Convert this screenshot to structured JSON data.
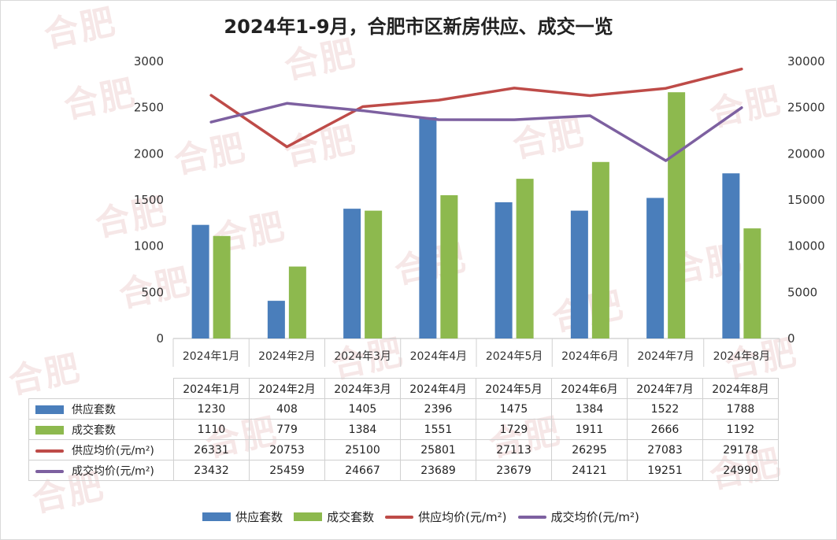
{
  "watermark": "合肥",
  "chart_data": {
    "type": "bar",
    "title": "2024年1-9月，合肥市区新房供应、成交一览",
    "categories": [
      "2024年1月",
      "2024年2月",
      "2024年3月",
      "2024年4月",
      "2024年5月",
      "2024年6月",
      "2024年7月",
      "2024年8月"
    ],
    "series": [
      {
        "name": "供应套数",
        "type": "bar",
        "axis": "left",
        "color": "#4a7ebb",
        "values": [
          1230,
          408,
          1405,
          2396,
          1475,
          1384,
          1522,
          1788
        ]
      },
      {
        "name": "成交套数",
        "type": "bar",
        "axis": "left",
        "color": "#8db94e",
        "values": [
          1110,
          779,
          1384,
          1551,
          1729,
          1911,
          2666,
          1192
        ]
      },
      {
        "name": "供应均价(元/m²)",
        "type": "line",
        "axis": "right",
        "color": "#be4b48",
        "values": [
          26331,
          20753,
          25100,
          25801,
          27113,
          26295,
          27083,
          29178
        ]
      },
      {
        "name": "成交均价(元/m²)",
        "type": "line",
        "axis": "right",
        "color": "#7d60a0",
        "values": [
          23432,
          25459,
          24667,
          23689,
          23679,
          24121,
          19251,
          24990
        ]
      }
    ],
    "left_axis": {
      "min": 0,
      "max": 3000,
      "ticks": [
        0,
        500,
        1000,
        1500,
        2000,
        2500,
        3000
      ]
    },
    "right_axis": {
      "min": 0,
      "max": 30000,
      "ticks": [
        0,
        5000,
        10000,
        15000,
        20000,
        25000,
        30000
      ]
    },
    "grid": false,
    "legend_position": "bottom",
    "data_table": true
  }
}
